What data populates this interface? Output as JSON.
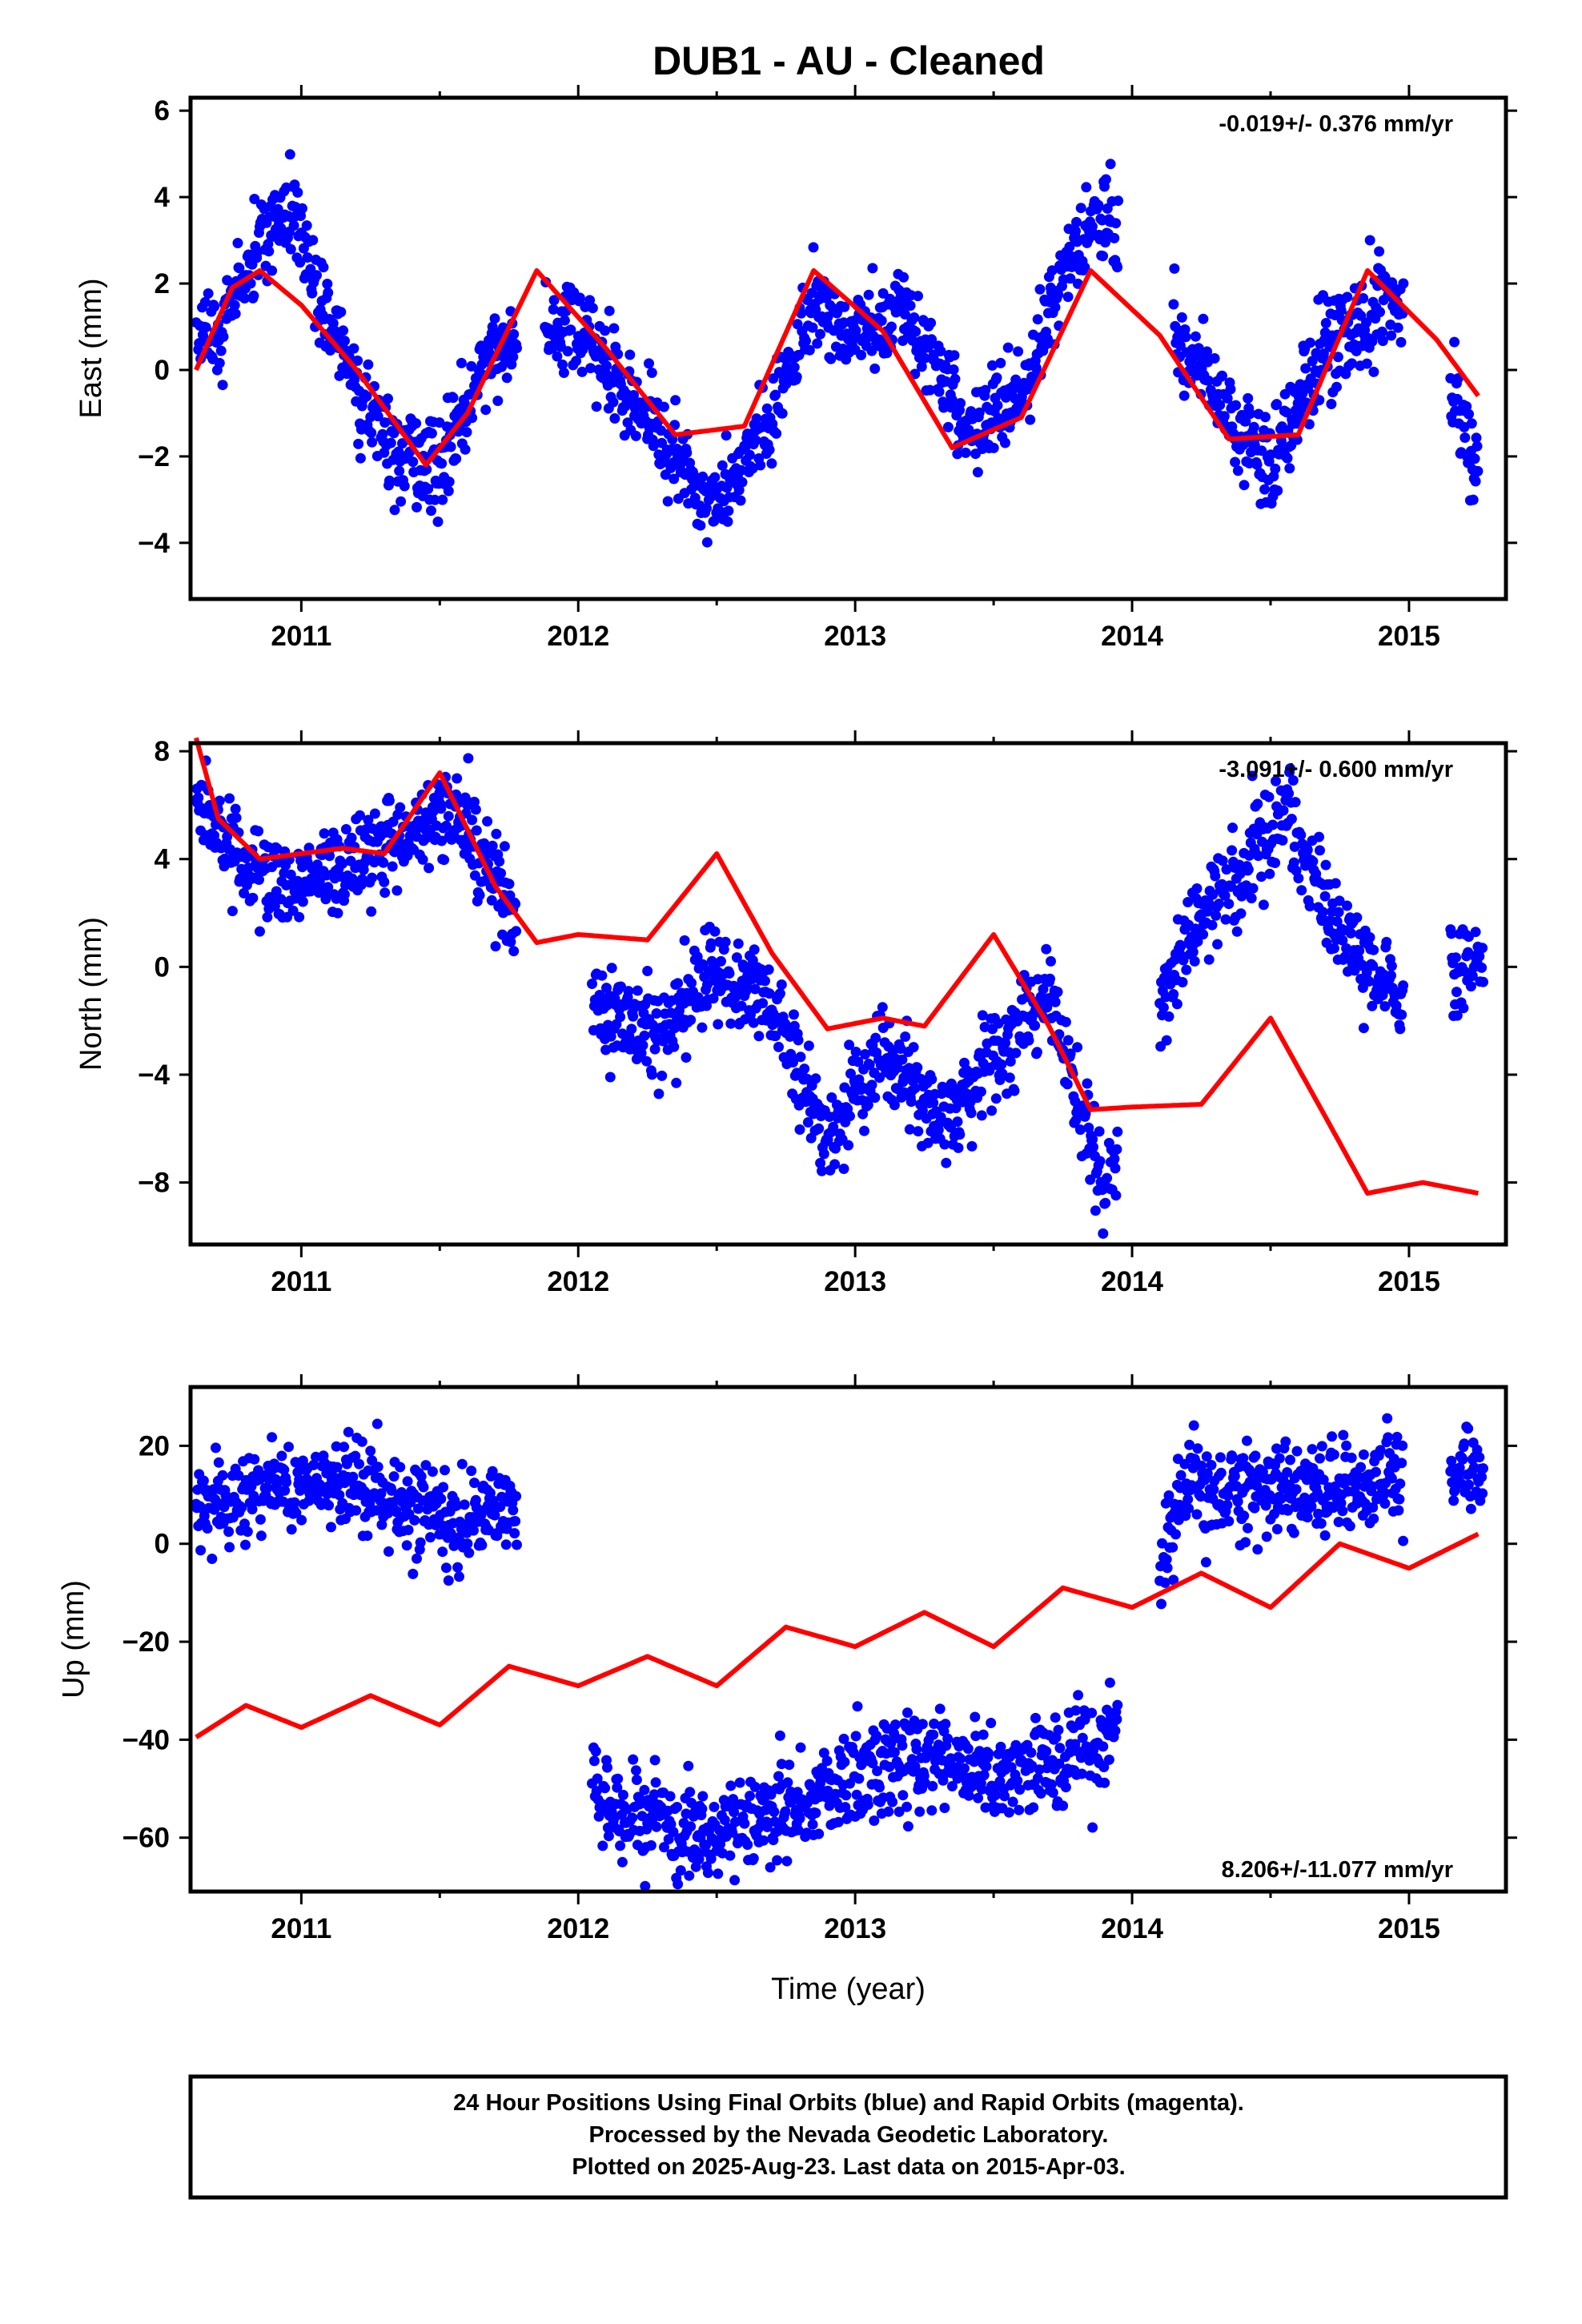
{
  "title": "DUB1  - AU - Cleaned",
  "colors": {
    "final_orbits": "#0000ff",
    "model": "#ff0000",
    "frame": "#000000"
  },
  "footer": {
    "line1": "24 Hour Positions Using Final Orbits (blue) and Rapid Orbits (magenta).",
    "line2": "Processed by the Nevada Geodetic Laboratory.",
    "line3": "Plotted on 2025-Aug-23. Last data on 2015-Apr-03."
  },
  "chart_data": [
    {
      "type": "scatter",
      "component": "east",
      "title": "",
      "xlabel": "",
      "ylabel": "East (mm)",
      "xlim": [
        2010.6,
        2015.35
      ],
      "ylim": [
        -5.3,
        6.3
      ],
      "xticks": [
        2011,
        2012,
        2013,
        2014,
        2015
      ],
      "yticks": [
        -4,
        -2,
        0,
        2,
        4,
        6
      ],
      "rate_label": "-0.019+/- 0.376 mm/yr",
      "rate_position": "top-right",
      "series": [
        {
          "role": "final-orbits-points",
          "segments": [
            [
              2010.62,
              2011.78
            ],
            [
              2011.88,
              2013.15
            ],
            [
              2013.15,
              2013.95
            ],
            [
              2014.15,
              2014.98
            ],
            [
              2015.15,
              2015.25
            ]
          ],
          "x": [
            2010.7,
            2010.85,
            2010.95,
            2011.1,
            2011.3,
            2011.5,
            2011.7,
            2012.0,
            2012.3,
            2012.5,
            2012.7,
            2012.85,
            2013.0,
            2013.2,
            2013.4,
            2013.6,
            2013.8,
            2013.9,
            2014.3,
            2014.5,
            2014.7,
            2014.9,
            2015.1,
            2015.25
          ],
          "y": [
            0.8,
            3.0,
            4.0,
            1.0,
            -1.5,
            -2.3,
            0.5,
            1.0,
            -1.5,
            -3.2,
            -1.0,
            1.5,
            1.0,
            1.2,
            -1.5,
            -0.5,
            3.0,
            3.5,
            -0.5,
            -2.3,
            0.5,
            1.5,
            0.8,
            -2.5
          ]
        },
        {
          "role": "model-curve",
          "x": [
            2010.62,
            2010.75,
            2010.85,
            2011.0,
            2011.2,
            2011.45,
            2011.6,
            2011.85,
            2012.1,
            2012.35,
            2012.6,
            2012.85,
            2013.1,
            2013.35,
            2013.6,
            2013.85,
            2014.1,
            2014.35,
            2014.6,
            2014.85,
            2015.1,
            2015.25
          ],
          "y": [
            0.0,
            1.9,
            2.3,
            1.5,
            0.0,
            -2.2,
            -1.0,
            2.3,
            0.5,
            -1.5,
            -1.3,
            2.3,
            0.9,
            -1.8,
            -1.1,
            2.3,
            0.8,
            -1.6,
            -1.5,
            2.3,
            0.7,
            -0.6
          ]
        }
      ]
    },
    {
      "type": "scatter",
      "component": "north",
      "title": "",
      "xlabel": "",
      "ylabel": "North (mm)",
      "xlim": [
        2010.6,
        2015.35
      ],
      "ylim": [
        -10.3,
        8.3
      ],
      "xticks": [
        2011,
        2012,
        2013,
        2014,
        2015
      ],
      "yticks": [
        -8,
        -4,
        0,
        4,
        8
      ],
      "rate_label": "-3.091+/- 0.600 mm/yr",
      "rate_position": "top-right",
      "series": [
        {
          "role": "final-orbits-points",
          "segments": [
            [
              2010.62,
              2011.78
            ],
            [
              2012.05,
              2013.95
            ],
            [
              2014.1,
              2014.98
            ],
            [
              2015.15,
              2015.27
            ]
          ],
          "x": [
            2010.65,
            2010.8,
            2011.0,
            2011.2,
            2011.4,
            2011.55,
            2011.7,
            2012.1,
            2012.3,
            2012.5,
            2012.7,
            2012.9,
            2013.1,
            2013.3,
            2013.5,
            2013.7,
            2013.9,
            2014.2,
            2014.4,
            2014.55,
            2014.7,
            2014.9,
            2015.2
          ],
          "y": [
            6.0,
            3.5,
            3.0,
            4.0,
            5.0,
            6.0,
            3.0,
            -2.0,
            -2.5,
            0.0,
            -1.5,
            -6.5,
            -3.0,
            -6.0,
            -3.5,
            -1.0,
            -8.5,
            1.5,
            3.5,
            6.0,
            2.0,
            -1.0,
            0.0
          ]
        },
        {
          "role": "model-curve",
          "x": [
            2010.62,
            2010.7,
            2010.85,
            2011.0,
            2011.15,
            2011.3,
            2011.5,
            2011.7,
            2011.85,
            2012.0,
            2012.25,
            2012.5,
            2012.7,
            2012.9,
            2013.1,
            2013.25,
            2013.5,
            2013.7,
            2013.85,
            2014.0,
            2014.25,
            2014.5,
            2014.7,
            2014.85,
            2015.05,
            2015.25
          ],
          "y": [
            8.5,
            5.5,
            4.0,
            4.2,
            4.4,
            4.2,
            7.2,
            3.0,
            0.9,
            1.2,
            1.0,
            4.2,
            0.5,
            -2.3,
            -1.9,
            -2.2,
            1.2,
            -2.2,
            -5.3,
            -5.2,
            -5.1,
            -1.9,
            -5.6,
            -8.4,
            -8.0,
            -8.4
          ]
        }
      ]
    },
    {
      "type": "scatter",
      "component": "up",
      "title": "",
      "xlabel": "Time (year)",
      "ylabel": "Up (mm)",
      "xlim": [
        2010.6,
        2015.35
      ],
      "ylim": [
        -71,
        32
      ],
      "xticks": [
        2011,
        2012,
        2013,
        2014,
        2015
      ],
      "yticks": [
        -60,
        -40,
        -20,
        0,
        20
      ],
      "rate_label": "8.206+/-11.077 mm/yr",
      "rate_position": "bottom-right",
      "series": [
        {
          "role": "final-orbits-points",
          "segments": [
            [
              2010.62,
              2011.78
            ],
            [
              2012.05,
              2013.95
            ],
            [
              2014.1,
              2014.98
            ],
            [
              2015.15,
              2015.27
            ]
          ],
          "x": [
            2010.7,
            2010.85,
            2011.0,
            2011.2,
            2011.4,
            2011.6,
            2011.75,
            2012.1,
            2012.3,
            2012.5,
            2012.7,
            2012.9,
            2013.1,
            2013.3,
            2013.5,
            2013.7,
            2013.9,
            2014.2,
            2014.5,
            2014.8,
            2015.2
          ],
          "y": [
            8,
            10,
            12,
            12,
            8,
            4,
            10,
            -55,
            -57,
            -60,
            -55,
            -50,
            -46,
            -43,
            -48,
            -45,
            -42,
            12,
            10,
            12,
            15
          ]
        },
        {
          "role": "model-curve",
          "x": [
            2010.62,
            2010.8,
            2011.0,
            2011.25,
            2011.5,
            2011.75,
            2012.0,
            2012.25,
            2012.5,
            2012.75,
            2013.0,
            2013.25,
            2013.5,
            2013.75,
            2014.0,
            2014.25,
            2014.5,
            2014.75,
            2015.0,
            2015.25
          ],
          "y": [
            -39.5,
            -33,
            -37.5,
            -31,
            -37,
            -25,
            -29,
            -23,
            -29,
            -17,
            -21,
            -14,
            -21,
            -9,
            -13,
            -6,
            -13,
            0,
            -5,
            2
          ]
        }
      ]
    }
  ]
}
